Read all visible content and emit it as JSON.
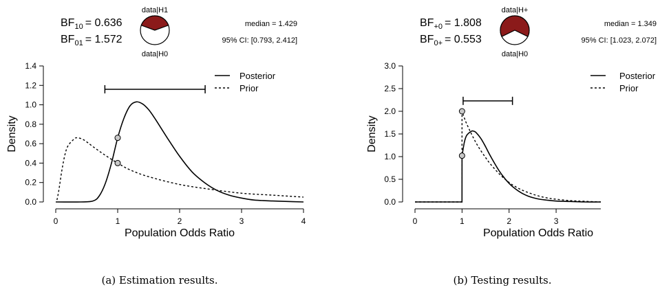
{
  "chart_data": [
    {
      "type": "line",
      "caption": "(a) Estimation results.",
      "bf_top": {
        "main": "BF",
        "sub": "10",
        "value": "= 0.636"
      },
      "bf_bottom": {
        "main": "BF",
        "sub": "01",
        "value": "= 1.572"
      },
      "pie": {
        "label_top": "data|H1",
        "label_bottom": "data|H0",
        "h1_fraction": 0.389,
        "color_h1": "#8b1a1a",
        "color_h0": "#ffffff"
      },
      "median_text": "median = 1.429",
      "ci_text": "95% CI: [0.793, 2.412]",
      "ci": [
        0.793,
        2.412
      ],
      "ci_y": 1.16,
      "xlim": [
        0,
        4
      ],
      "ylim": [
        0,
        1.4
      ],
      "xticks": [
        0,
        1,
        2,
        3,
        4
      ],
      "yticks": [
        0.0,
        0.2,
        0.4,
        0.6,
        0.8,
        1.0,
        1.2,
        1.4
      ],
      "xtick_labels": [
        "0",
        "1",
        "2",
        "3",
        "4"
      ],
      "ytick_labels": [
        "0.0",
        "0.2",
        "0.4",
        "0.6",
        "0.8",
        "1.0",
        "1.2",
        "1.4"
      ],
      "xlabel": "Population Odds Ratio",
      "ylabel": "Density",
      "legend": {
        "placement": "top-right",
        "entries": [
          "Posterior",
          "Prior"
        ]
      },
      "series": [
        {
          "name": "Posterior",
          "style": "solid",
          "x": [
            0,
            0.4,
            0.6,
            0.7,
            0.8,
            0.9,
            1.0,
            1.1,
            1.2,
            1.3,
            1.4,
            1.5,
            1.6,
            1.8,
            2.0,
            2.2,
            2.4,
            2.6,
            2.8,
            3.0,
            3.2,
            3.5,
            4.0
          ],
          "y": [
            0,
            0,
            0.01,
            0.06,
            0.19,
            0.4,
            0.66,
            0.86,
            0.99,
            1.03,
            1.01,
            0.95,
            0.86,
            0.66,
            0.47,
            0.31,
            0.2,
            0.12,
            0.07,
            0.04,
            0.02,
            0.01,
            0.0
          ]
        },
        {
          "name": "Prior",
          "style": "dashed",
          "x": [
            0.02,
            0.05,
            0.1,
            0.15,
            0.2,
            0.3,
            0.35,
            0.45,
            0.6,
            0.8,
            1.0,
            1.2,
            1.5,
            2.0,
            2.5,
            3.0,
            3.5,
            4.0
          ],
          "y": [
            0.02,
            0.12,
            0.33,
            0.49,
            0.58,
            0.65,
            0.66,
            0.64,
            0.57,
            0.48,
            0.4,
            0.33,
            0.26,
            0.18,
            0.13,
            0.09,
            0.07,
            0.05
          ]
        }
      ],
      "points": [
        {
          "x": 1,
          "y": 0.66
        },
        {
          "x": 1,
          "y": 0.4
        }
      ]
    },
    {
      "type": "line",
      "caption": "(b) Testing results.",
      "bf_top": {
        "main": "BF",
        "sub": "+0",
        "value": "= 1.808"
      },
      "bf_bottom": {
        "main": "BF",
        "sub": "0+",
        "value": "= 0.553"
      },
      "pie": {
        "label_top": "data|H+",
        "label_bottom": "data|H0",
        "h1_fraction": 0.644,
        "color_h1": "#8b1a1a",
        "color_h0": "#ffffff"
      },
      "median_text": "median = 1.349",
      "ci_text": "95% CI: [1.023, 2.072]",
      "ci": [
        1.023,
        2.072
      ],
      "ci_y": 2.23,
      "xlim": [
        0,
        3.95
      ],
      "ylim": [
        0,
        3.0
      ],
      "xticks": [
        0,
        1,
        2,
        3
      ],
      "yticks": [
        0.0,
        0.5,
        1.0,
        1.5,
        2.0,
        2.5,
        3.0
      ],
      "xtick_labels": [
        "0",
        "1",
        "2",
        "3"
      ],
      "ytick_labels": [
        "0.0",
        "0.5",
        "1.0",
        "1.5",
        "2.0",
        "2.5",
        "3.0"
      ],
      "xlabel": "Population Odds Ratio",
      "ylabel": "Density",
      "legend": {
        "placement": "top-right",
        "entries": [
          "Posterior",
          "Prior"
        ]
      },
      "series": [
        {
          "name": "Posterior",
          "style": "solid",
          "x": [
            0,
            0.999,
            1.0,
            1.05,
            1.1,
            1.2,
            1.25,
            1.3,
            1.4,
            1.5,
            1.6,
            1.8,
            2.0,
            2.2,
            2.4,
            2.6,
            2.8,
            3.0,
            3.3,
            3.6,
            3.95
          ],
          "y": [
            0,
            0,
            1.02,
            1.32,
            1.47,
            1.56,
            1.56,
            1.53,
            1.4,
            1.22,
            1.02,
            0.67,
            0.41,
            0.24,
            0.13,
            0.07,
            0.04,
            0.02,
            0.01,
            0.0,
            0.0
          ]
        },
        {
          "name": "Prior",
          "style": "dashed",
          "x": [
            0,
            0.999,
            1.0,
            1.05,
            1.1,
            1.2,
            1.3,
            1.4,
            1.5,
            1.6,
            1.8,
            2.0,
            2.2,
            2.4,
            2.6,
            2.8,
            3.0,
            3.3,
            3.6,
            3.95
          ],
          "y": [
            0,
            0,
            2.0,
            1.85,
            1.72,
            1.5,
            1.3,
            1.13,
            0.98,
            0.84,
            0.61,
            0.43,
            0.3,
            0.21,
            0.14,
            0.09,
            0.06,
            0.03,
            0.015,
            0.0
          ]
        }
      ],
      "points": [
        {
          "x": 1,
          "y": 2.0
        },
        {
          "x": 1,
          "y": 1.02
        }
      ]
    }
  ]
}
